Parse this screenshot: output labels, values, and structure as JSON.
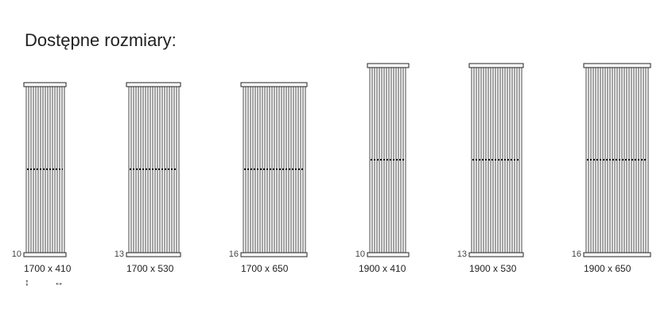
{
  "title": "Dostępne rozmiary:",
  "radiators": [
    {
      "count": "10",
      "size": "1700 x 410"
    },
    {
      "count": "13",
      "size": "1700 x 530"
    },
    {
      "count": "16",
      "size": "1700 x 650"
    },
    {
      "count": "10",
      "size": "1900 x 410"
    },
    {
      "count": "13",
      "size": "1900 x 530"
    },
    {
      "count": "16",
      "size": "1900 x 650"
    }
  ],
  "legend": {
    "height_icon": "↕",
    "width_icon": "↔"
  }
}
